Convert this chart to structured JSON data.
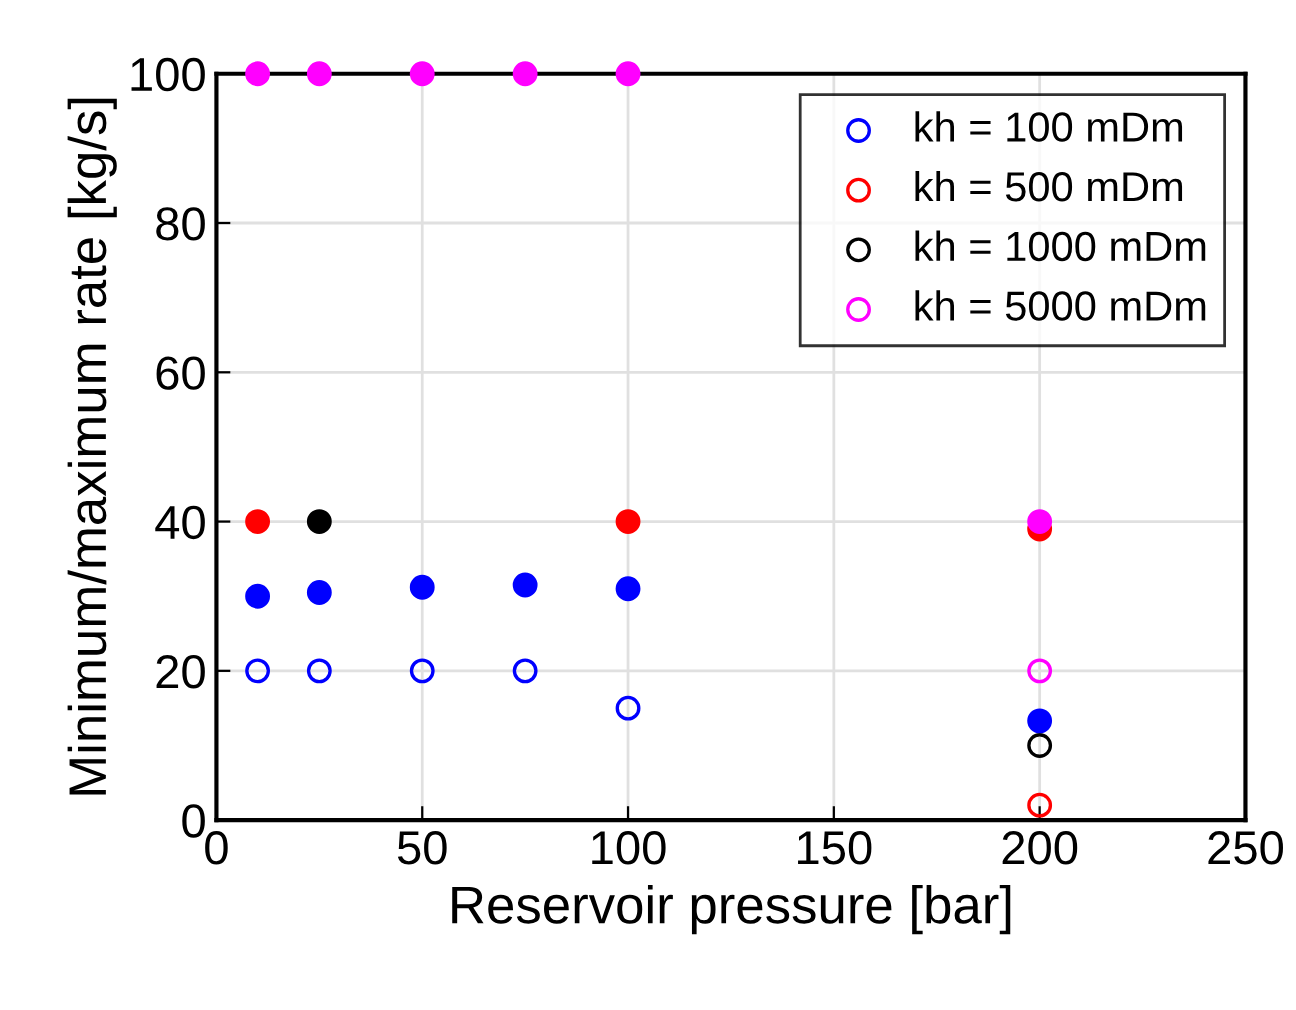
{
  "chart_data": {
    "type": "scatter",
    "xlabel": "Reservoir pressure [bar]",
    "ylabel": "Minimum/maximum rate [kg/s]",
    "xlim": [
      0,
      250
    ],
    "xticks": [
      0,
      50,
      100,
      150,
      200,
      250
    ],
    "ylim": [
      0,
      100
    ],
    "yticks": [
      0,
      20,
      40,
      60,
      80,
      100
    ],
    "grid": true,
    "legend": "top right",
    "marker": "circle",
    "series": [
      {
        "name": "kh = 100 mDm",
        "color": "#0000ff",
        "marker": "circle_open",
        "x": [
          10,
          25,
          50,
          75,
          100
        ],
        "values": [
          20,
          20,
          20,
          20,
          15
        ]
      },
      {
        "name": "kh = 500 mDm",
        "color": "#ff0000",
        "marker": "circle_open",
        "x": [
          200
        ],
        "values": [
          2
        ]
      },
      {
        "name": "kh = 1000 mDm",
        "color": "#000000",
        "marker": "circle_open",
        "x": [
          200
        ],
        "values": [
          10
        ]
      },
      {
        "name": "kh = 5000 mDm",
        "color": "#ff00ff",
        "marker": "circle_open",
        "x": [
          200
        ],
        "values": [
          20
        ]
      },
      {
        "color": "#0000ff",
        "x": [
          10,
          25,
          50,
          75,
          100,
          200
        ],
        "values": [
          30,
          30.5,
          31.2,
          31.5,
          31,
          13.3
        ]
      },
      {
        "color": "#ff0000",
        "x": [
          10,
          100,
          200
        ],
        "values": [
          40,
          40,
          39
        ]
      },
      {
        "color": "#000000",
        "x": [
          25
        ],
        "values": [
          40
        ]
      },
      {
        "color": "#ff00ff",
        "x": [
          10,
          25,
          50,
          75,
          100,
          200
        ],
        "values": [
          100,
          100,
          100,
          100,
          100,
          40
        ]
      }
    ]
  }
}
